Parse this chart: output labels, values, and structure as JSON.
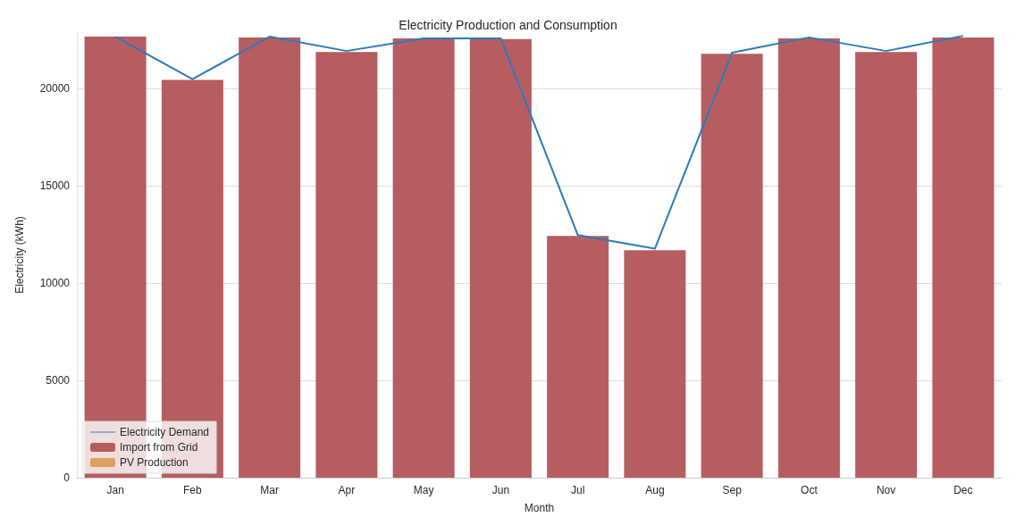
{
  "chart_data": {
    "type": "bar",
    "title": "Electricity Production and Consumption",
    "xlabel": "Month",
    "ylabel": "Electricity (kWh)",
    "categories": [
      "Jan",
      "Feb",
      "Mar",
      "Apr",
      "May",
      "Jun",
      "Jul",
      "Aug",
      "Sep",
      "Oct",
      "Nov",
      "Dec"
    ],
    "series": [
      {
        "name": "Electricity Demand",
        "type": "line",
        "color": "#2a7ab9",
        "values": [
          22670,
          20480,
          22670,
          21930,
          22580,
          22580,
          12470,
          11770,
          21840,
          22630,
          21930,
          22710
        ]
      },
      {
        "name": "Import from Grid",
        "color": "#b55d60",
        "values": [
          22670,
          20440,
          22630,
          21880,
          22580,
          22540,
          12430,
          11690,
          21790,
          22580,
          21880,
          22630
        ]
      },
      {
        "name": "PV Production",
        "color": "#dd9f5f",
        "values": [
          0,
          0,
          0,
          0,
          0,
          0,
          0,
          0,
          0,
          0,
          0,
          0
        ]
      }
    ],
    "stacked": true,
    "ylim": [
      0,
      22900
    ],
    "yticks": [
      0,
      5000,
      10000,
      15000,
      20000
    ],
    "grid": "y",
    "legend": "bottom left",
    "marker": "none",
    "line_style": "solid"
  }
}
